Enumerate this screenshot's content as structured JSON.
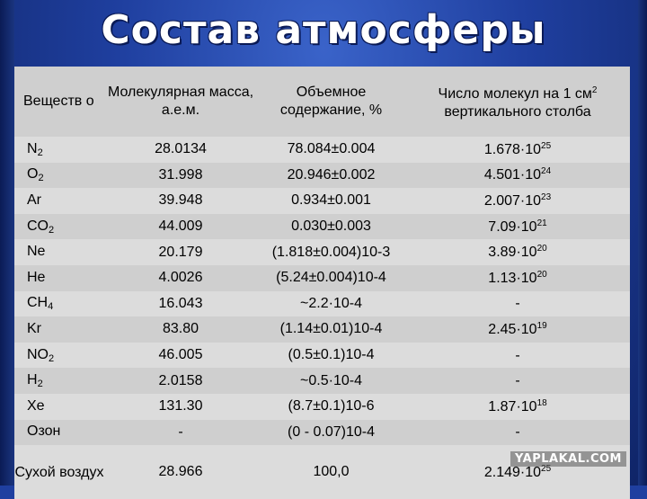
{
  "title": "Состав атмосферы",
  "headers": {
    "substance": "Веществ о",
    "molar_mass": "Молекулярная масса, а.е.м.",
    "volume": "Объемное содержание, %",
    "molecules_base": "Число молекул на 1 см",
    "molecules_sup": "2",
    "molecules_rest": "вертикального столба"
  },
  "rows": [
    {
      "base": "N",
      "sub": "2",
      "mass": "28.0134",
      "volume": "78.084±0.004",
      "mol_base": "1.678·10",
      "mol_sup": "25"
    },
    {
      "base": "O",
      "sub": "2",
      "mass": "31.998",
      "volume": "20.946±0.002",
      "mol_base": "4.501·10",
      "mol_sup": "24"
    },
    {
      "base": "Ar",
      "sub": "",
      "mass": "39.948",
      "volume": "0.934±0.001",
      "mol_base": "2.007·10",
      "mol_sup": "23"
    },
    {
      "base": "CO",
      "sub": "2",
      "mass": "44.009",
      "volume": "0.030±0.003",
      "mol_base": "7.09·10",
      "mol_sup": "21"
    },
    {
      "base": "Ne",
      "sub": "",
      "mass": "20.179",
      "volume": "(1.818±0.004)10-3",
      "mol_base": "3.89·10",
      "mol_sup": "20"
    },
    {
      "base": "He",
      "sub": "",
      "mass": "4.0026",
      "volume": "(5.24±0.004)10-4",
      "mol_base": "1.13·10",
      "mol_sup": "20"
    },
    {
      "base": "CH",
      "sub": "4",
      "mass": "16.043",
      "volume": "~2.2·10-4",
      "mol_base": "-",
      "mol_sup": ""
    },
    {
      "base": "Kr",
      "sub": "",
      "mass": "83.80",
      "volume": "(1.14±0.01)10-4",
      "mol_base": "2.45·10",
      "mol_sup": "19"
    },
    {
      "base": "NO",
      "sub": "2",
      "mass": "46.005",
      "volume": "(0.5±0.1)10-4",
      "mol_base": "-",
      "mol_sup": ""
    },
    {
      "base": "H",
      "sub": "2",
      "mass": "2.0158",
      "volume": "~0.5·10-4",
      "mol_base": "-",
      "mol_sup": ""
    },
    {
      "base": "Xe",
      "sub": "",
      "mass": "131.30",
      "volume": "(8.7±0.1)10-6",
      "mol_base": "1.87·10",
      "mol_sup": "18"
    },
    {
      "base": "Озон",
      "sub": "",
      "mass": "-",
      "volume": "(0 - 0.07)10-4",
      "mol_base": "-",
      "mol_sup": ""
    }
  ],
  "last_row": {
    "label": "Сухой воздух",
    "mass": "28.966",
    "volume": "100,0",
    "mol_base": "2.149·10",
    "mol_sup": "25"
  },
  "watermark": "YAPLAKAL.COM"
}
